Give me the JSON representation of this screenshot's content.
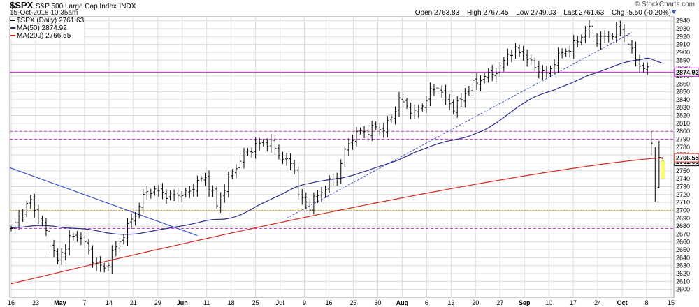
{
  "header": {
    "symbol": "$SPX",
    "name": "S&P 500 Large Cap Index",
    "exchange": "INDX",
    "date": "15-Oct-2018 10:35am",
    "brand": "© StockCharts.com",
    "ohlc": [
      {
        "label": "Open",
        "value": "2763.83"
      },
      {
        "label": "High",
        "value": "2767.45"
      },
      {
        "label": "Low",
        "value": "2749.03"
      },
      {
        "label": "Last",
        "value": "2761.63"
      },
      {
        "label": "Chg",
        "value": "-5.50 (-0.20%)"
      }
    ]
  },
  "legend": {
    "price": "$SPX (Daily) 2761.63",
    "ma50": "MA(50) 2874.92",
    "ma200": "MA(200) 2766.55"
  },
  "colors": {
    "price": "#000000",
    "ma50": "#2a2a8c",
    "ma200": "#d62a1e",
    "magenta_line": "#c02bd0",
    "dashed_magenta": "#d63ad0",
    "dotted_orange": "#e0a000",
    "blue_trend": "#3c52c8",
    "grid": "#dcdcdc",
    "last_price_badge": "#ffff66"
  },
  "chart_data": {
    "type": "ohlc",
    "y_axis": {
      "min": 2590,
      "max": 2945,
      "ticks": [
        2600,
        2610,
        2620,
        2630,
        2640,
        2650,
        2660,
        2670,
        2680,
        2690,
        2700,
        2710,
        2720,
        2730,
        2740,
        2750,
        2760,
        2770,
        2780,
        2790,
        2800,
        2810,
        2820,
        2830,
        2840,
        2850,
        2860,
        2870,
        2880,
        2890,
        2900,
        2910,
        2920,
        2930,
        2940
      ]
    },
    "x_tick_labels": [
      "16",
      "23",
      "May",
      "7",
      "14",
      "21",
      "29",
      "Jun",
      "11",
      "18",
      "25",
      "Jul",
      "9",
      "16",
      "23",
      "30",
      "Aug",
      "6",
      "13",
      "20",
      "27",
      "Sep",
      "10",
      "17",
      "24",
      "Oct",
      "8",
      "15"
    ],
    "x_major_labels": [
      "May",
      "Jun",
      "Jul",
      "Aug",
      "Sep",
      "Oct"
    ],
    "series": [
      {
        "name": "$SPX (Daily)",
        "last": 2761.63,
        "anchors": [
          [
            0,
            2675
          ],
          [
            3,
            2700
          ],
          [
            5,
            2712
          ],
          [
            9,
            2672
          ],
          [
            12,
            2635
          ],
          [
            15,
            2665
          ],
          [
            18,
            2668
          ],
          [
            21,
            2637
          ],
          [
            24,
            2625
          ],
          [
            26,
            2646
          ],
          [
            28,
            2660
          ],
          [
            30,
            2680
          ],
          [
            32,
            2695
          ],
          [
            34,
            2718
          ],
          [
            36,
            2726
          ],
          [
            38,
            2724
          ],
          [
            41,
            2718
          ],
          [
            43,
            2720
          ],
          [
            46,
            2723
          ],
          [
            48,
            2737
          ],
          [
            50,
            2740
          ],
          [
            52,
            2722
          ],
          [
            53,
            2705
          ],
          [
            55,
            2729
          ],
          [
            57,
            2748
          ],
          [
            60,
            2770
          ],
          [
            63,
            2782
          ],
          [
            65,
            2786
          ],
          [
            67,
            2785
          ],
          [
            69,
            2771
          ],
          [
            71,
            2762
          ],
          [
            73,
            2755
          ],
          [
            74,
            2718
          ],
          [
            76,
            2710
          ],
          [
            77,
            2705
          ],
          [
            78,
            2714
          ],
          [
            80,
            2723
          ],
          [
            82,
            2736
          ],
          [
            84,
            2743
          ],
          [
            86,
            2775
          ],
          [
            88,
            2793
          ],
          [
            90,
            2800
          ],
          [
            92,
            2800
          ],
          [
            94,
            2806
          ],
          [
            96,
            2802
          ],
          [
            98,
            2818
          ],
          [
            100,
            2840
          ],
          [
            102,
            2832
          ],
          [
            104,
            2822
          ],
          [
            106,
            2833
          ],
          [
            108,
            2850
          ],
          [
            110,
            2857
          ],
          [
            112,
            2840
          ],
          [
            114,
            2830
          ],
          [
            116,
            2840
          ],
          [
            118,
            2857
          ],
          [
            120,
            2862
          ],
          [
            122,
            2870
          ],
          [
            124,
            2873
          ],
          [
            126,
            2880
          ],
          [
            128,
            2898
          ],
          [
            130,
            2902
          ],
          [
            132,
            2899
          ],
          [
            134,
            2886
          ],
          [
            136,
            2878
          ],
          [
            138,
            2872
          ],
          [
            140,
            2888
          ],
          [
            142,
            2900
          ],
          [
            144,
            2904
          ],
          [
            146,
            2915
          ],
          [
            148,
            2927
          ],
          [
            149,
            2930
          ],
          [
            151,
            2914
          ],
          [
            153,
            2920
          ],
          [
            155,
            2923
          ],
          [
            157,
            2931
          ],
          [
            158,
            2922
          ],
          [
            160,
            2901
          ],
          [
            162,
            2885
          ],
          [
            163,
            2877
          ],
          [
            164,
            2880
          ],
          [
            165,
            2785
          ],
          [
            166,
            2728
          ],
          [
            167,
            2767
          ],
          [
            168,
            2761.6
          ]
        ]
      },
      {
        "name": "MA(50)",
        "last": 2874.92
      },
      {
        "name": "MA(200)",
        "last": 2766.55
      }
    ],
    "horizontal_lines": [
      {
        "value": 2874.9,
        "style": "solid-magenta"
      },
      {
        "value": 2800,
        "style": "dashed-magenta"
      },
      {
        "value": 2790,
        "style": "dashed-magenta"
      },
      {
        "value": 2700,
        "style": "dotted-orange"
      },
      {
        "value": 2677,
        "style": "dashed-magenta"
      }
    ],
    "axis_badges": [
      {
        "value": 2874.92,
        "label": "2874.92"
      },
      {
        "value": 2761.63,
        "label": "2761.63"
      },
      {
        "value": 2766.55,
        "label": "2766.55"
      }
    ]
  }
}
